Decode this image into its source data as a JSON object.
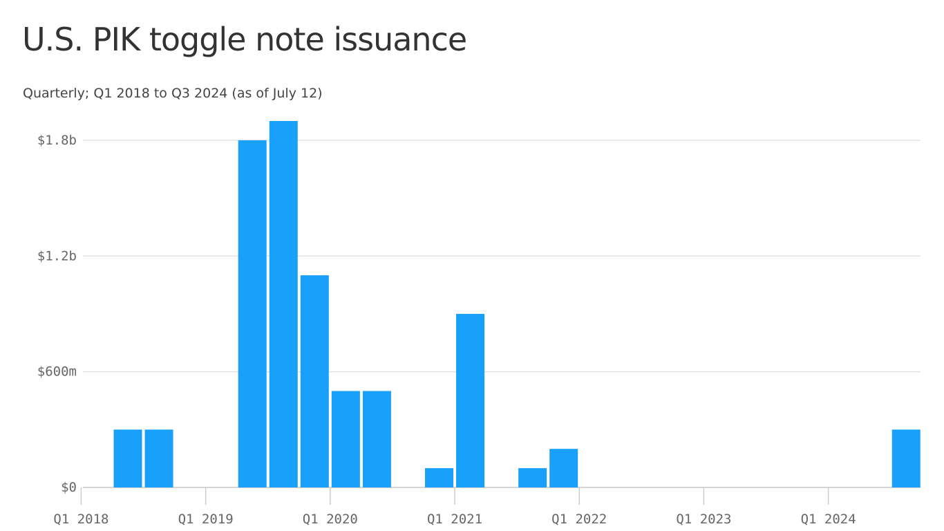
{
  "header": {
    "title": "U.S. PIK toggle note issuance",
    "subtitle": "Quarterly; Q1 2018 to Q3 2024 (as of July 12)"
  },
  "colors": {
    "bar": "#18a0fb",
    "grid": "#dddddd",
    "text": "#333333",
    "axis_text": "#666666"
  },
  "chart_data": {
    "type": "bar",
    "title": "U.S. PIK toggle note issuance",
    "subtitle": "Quarterly; Q1 2018 to Q3 2024 (as of July 12)",
    "xlabel": "",
    "ylabel": "",
    "ylim": [
      0,
      1900
    ],
    "grid": true,
    "y_ticks": [
      {
        "value": 0,
        "label": "$0"
      },
      {
        "value": 600,
        "label": "$600m"
      },
      {
        "value": 1200,
        "label": "$1.2b"
      },
      {
        "value": 1800,
        "label": "$1.8b"
      }
    ],
    "x_tick_labels": [
      "Q1 2018",
      "Q1 2019",
      "Q1 2020",
      "Q1 2021",
      "Q1 2022",
      "Q1 2023",
      "Q1 2024"
    ],
    "categories": [
      "Q1 2018",
      "Q2 2018",
      "Q3 2018",
      "Q4 2018",
      "Q1 2019",
      "Q2 2019",
      "Q3 2019",
      "Q4 2019",
      "Q1 2020",
      "Q2 2020",
      "Q3 2020",
      "Q4 2020",
      "Q1 2021",
      "Q2 2021",
      "Q3 2021",
      "Q4 2021",
      "Q1 2022",
      "Q2 2022",
      "Q3 2022",
      "Q4 2022",
      "Q1 2023",
      "Q2 2023",
      "Q3 2023",
      "Q4 2023",
      "Q1 2024",
      "Q2 2024",
      "Q3 2024"
    ],
    "values": [
      0,
      300,
      300,
      0,
      0,
      1800,
      1900,
      1100,
      500,
      500,
      0,
      100,
      900,
      0,
      100,
      200,
      0,
      0,
      0,
      0,
      0,
      0,
      0,
      0,
      0,
      0,
      300
    ]
  }
}
